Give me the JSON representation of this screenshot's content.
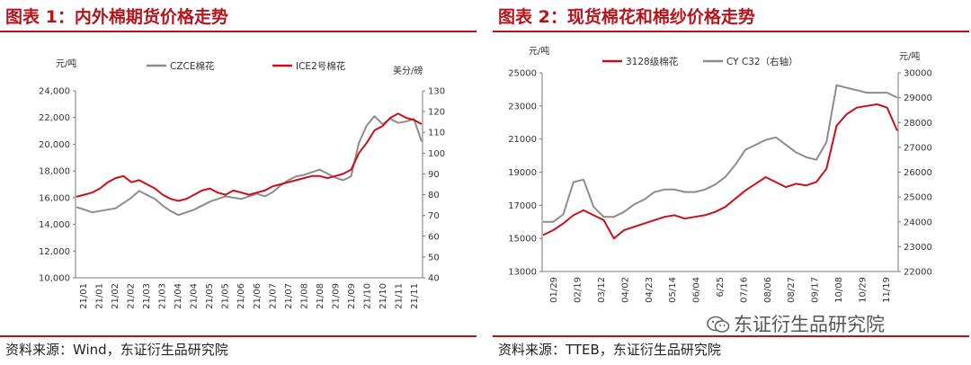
{
  "panels": {
    "left": {
      "title": "图表 1：内外棉期货价格走势",
      "source": "资料来源：Wind，东证衍生品研究院"
    },
    "right": {
      "title": "图表 2：现货棉花和棉纱价格走势",
      "source": "资料来源：TTEB，东证衍生品研究院"
    }
  },
  "watermark": {
    "text": "东证衍生品研究院",
    "icon": "wechat-icon"
  },
  "chart_data": [
    {
      "type": "line",
      "title": "",
      "ylabel_left": "元/吨",
      "ylabel_right": "美分/磅",
      "ylim_left": [
        10000,
        24000
      ],
      "ylim_right": [
        40,
        130
      ],
      "yticks_left": [
        "10,000",
        "12,000",
        "14,000",
        "16,000",
        "18,000",
        "20,000",
        "22,000",
        "24,000"
      ],
      "yticks_right": [
        "40",
        "50",
        "60",
        "70",
        "80",
        "90",
        "100",
        "110",
        "120",
        "130"
      ],
      "x_ticks": [
        "21/01",
        "21/01",
        "21/02",
        "21/02",
        "21/03",
        "21/03",
        "21/04",
        "21/04",
        "21/05",
        "21/05",
        "21/06",
        "21/06",
        "21/07",
        "21/07",
        "21/08",
        "21/08",
        "21/09",
        "21/09",
        "21/10",
        "21/10",
        "21/11",
        "21/11"
      ],
      "colors": {
        "czce": "#8c8c8c",
        "ice": "#c8101a"
      },
      "grid": false,
      "legend_position": "top",
      "series": [
        {
          "name": "CZCE棉花",
          "axis": "left",
          "values": [
            15300,
            15100,
            14900,
            15000,
            15100,
            15200,
            15600,
            16000,
            16500,
            16200,
            15900,
            15400,
            15000,
            14700,
            14900,
            15100,
            15400,
            15700,
            15900,
            16100,
            16000,
            15900,
            16100,
            16300,
            16100,
            16400,
            16900,
            17300,
            17600,
            17700,
            17900,
            18100,
            17800,
            17500,
            17300,
            17600,
            20100,
            21400,
            22100,
            21500,
            21900,
            21600,
            21700,
            21900,
            20200
          ]
        },
        {
          "name": "ICE2号棉花",
          "axis": "right",
          "values": [
            79,
            80,
            81,
            83,
            86,
            88,
            89,
            86,
            87,
            85,
            83,
            80,
            78,
            77,
            78,
            80,
            82,
            83,
            81,
            80,
            82,
            81,
            80,
            81,
            82,
            84,
            85,
            86,
            87,
            88,
            89,
            89,
            88,
            89,
            90,
            92,
            100,
            105,
            111,
            113,
            117,
            119,
            117,
            116,
            114
          ]
        }
      ]
    },
    {
      "type": "line",
      "title": "",
      "ylabel_left": "元/吨",
      "ylabel_right": "元/吨",
      "ylim_left": [
        13000,
        25000
      ],
      "ylim_right": [
        22000,
        30000
      ],
      "yticks_left": [
        "13000",
        "15000",
        "17000",
        "19000",
        "21000",
        "23000",
        "25000"
      ],
      "yticks_right": [
        "22000",
        "23000",
        "24000",
        "25000",
        "26000",
        "27000",
        "28000",
        "29000",
        "30000"
      ],
      "x_ticks": [
        "01/29",
        "02/19",
        "03/12",
        "04/02",
        "04/23",
        "05/14",
        "06/04",
        "6/25",
        "07/16",
        "08/06",
        "08/27",
        "09/17",
        "10/08",
        "10/29",
        "11/19"
      ],
      "colors": {
        "spot": "#c8101a",
        "yarn": "#8c8c8c"
      },
      "grid": false,
      "legend_position": "top",
      "series": [
        {
          "name": "3128级棉花",
          "axis": "left",
          "values": [
            15200,
            15500,
            15900,
            16400,
            16700,
            16400,
            16100,
            15000,
            15500,
            15700,
            15900,
            16100,
            16300,
            16400,
            16200,
            16300,
            16400,
            16600,
            16900,
            17400,
            17900,
            18300,
            18700,
            18400,
            18100,
            18300,
            18200,
            18400,
            19200,
            21800,
            22500,
            22900,
            23000,
            23100,
            22900,
            21500
          ]
        },
        {
          "name": "CY C32（右轴）",
          "axis": "right",
          "values": [
            24000,
            24000,
            24300,
            25600,
            25700,
            24600,
            24200,
            24200,
            24400,
            24700,
            24900,
            25200,
            25300,
            25300,
            25200,
            25200,
            25300,
            25500,
            25800,
            26300,
            26900,
            27100,
            27300,
            27400,
            27100,
            26800,
            26600,
            26500,
            27200,
            29500,
            29400,
            29300,
            29200,
            29200,
            29200,
            29000
          ]
        }
      ]
    }
  ]
}
